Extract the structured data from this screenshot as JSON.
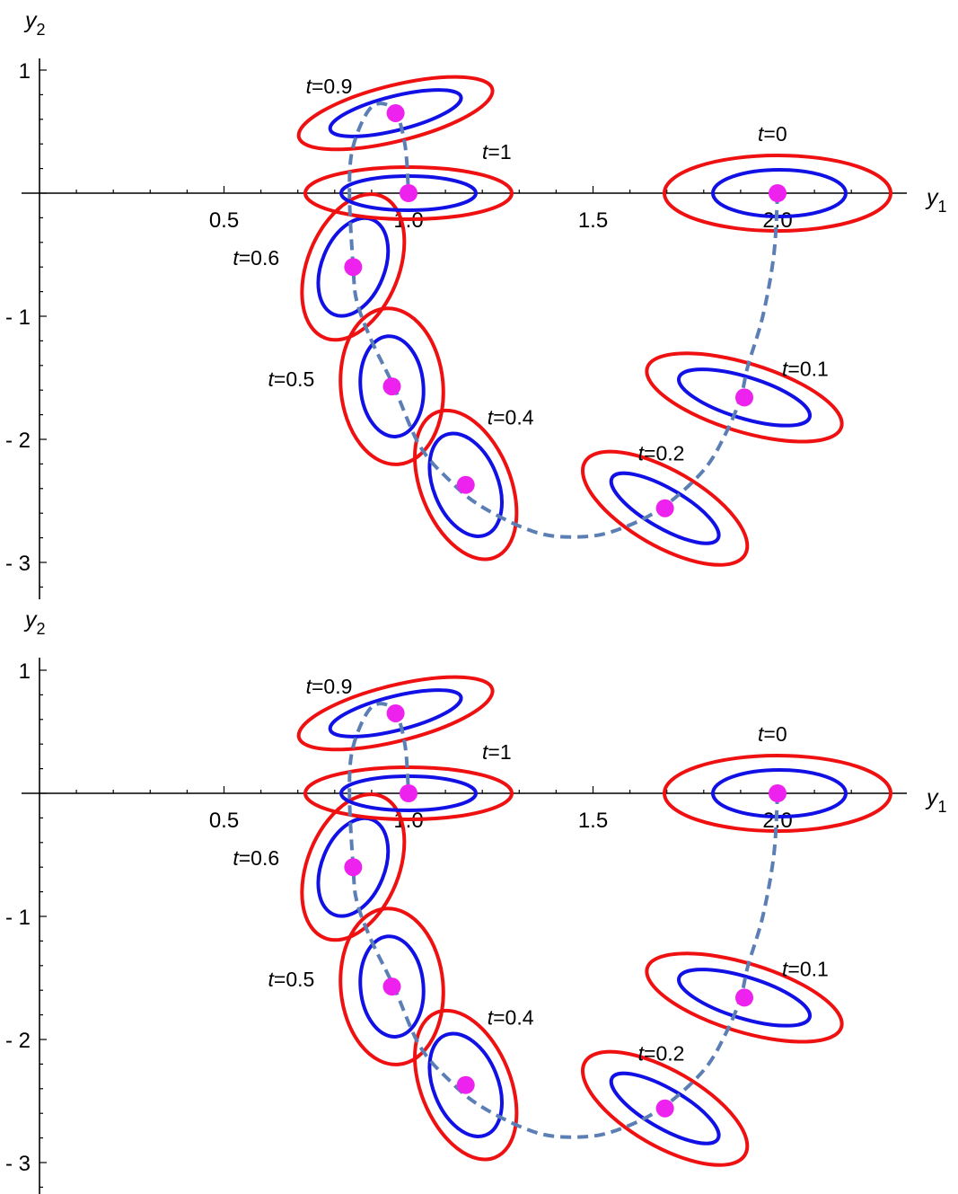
{
  "chart_data": [
    {
      "type": "scatter",
      "xlabel": "y",
      "xlabel_sub": "1",
      "ylabel": "y",
      "ylabel_sub": "2",
      "xlim": [
        0.0,
        2.3
      ],
      "ylim": [
        -3.3,
        1.1
      ],
      "x_ticks": [
        {
          "value": 0.5,
          "label": "0.5"
        },
        {
          "value": 1.0,
          "label": "1.0"
        },
        {
          "value": 1.5,
          "label": "1.5"
        },
        {
          "value": 2.0,
          "label": "2.0"
        }
      ],
      "y_ticks": [
        {
          "value": 1,
          "label": "1"
        },
        {
          "value": -1,
          "label": "- 1"
        },
        {
          "value": -2,
          "label": "- 2"
        },
        {
          "value": -3,
          "label": "- 3"
        }
      ],
      "trajectory": [
        [
          2.0,
          0.0
        ],
        [
          1.99,
          -0.5
        ],
        [
          1.96,
          -1.0
        ],
        [
          1.92,
          -1.4
        ],
        [
          1.9,
          -1.66
        ],
        [
          1.86,
          -1.95
        ],
        [
          1.8,
          -2.25
        ],
        [
          1.69,
          -2.55
        ],
        [
          1.58,
          -2.72
        ],
        [
          1.48,
          -2.79
        ],
        [
          1.35,
          -2.76
        ],
        [
          1.2,
          -2.55
        ],
        [
          1.11,
          -2.33
        ],
        [
          1.03,
          -2.05
        ],
        [
          0.96,
          -1.57
        ],
        [
          0.9,
          -1.2
        ],
        [
          0.86,
          -0.88
        ],
        [
          0.85,
          -0.6
        ],
        [
          0.84,
          0.0
        ],
        [
          0.85,
          0.38
        ],
        [
          0.9,
          0.7
        ],
        [
          0.96,
          0.68
        ],
        [
          0.99,
          0.4
        ],
        [
          1.0,
          0.0
        ]
      ],
      "points": [
        {
          "label": "t=0",
          "x": 2.0,
          "y": 0.0
        },
        {
          "label": "t=0.1",
          "x": 1.91,
          "y": -1.66
        },
        {
          "label": "t=0.2",
          "x": 1.695,
          "y": -2.56
        },
        {
          "label": "t=0.4",
          "x": 1.155,
          "y": -2.37
        },
        {
          "label": "t=0.5",
          "x": 0.955,
          "y": -1.57
        },
        {
          "label": "t=0.6",
          "x": 0.85,
          "y": -0.6
        },
        {
          "label": "t=0.9",
          "x": 0.965,
          "y": 0.65
        },
        {
          "label": "t=1",
          "x": 1.0,
          "y": 0.0
        }
      ]
    },
    {
      "type": "scatter",
      "xlabel": "y",
      "xlabel_sub": "1",
      "ylabel": "y",
      "ylabel_sub": "2",
      "xlim": [
        0.0,
        2.3
      ],
      "ylim": [
        -3.3,
        1.1
      ],
      "x_ticks": [
        {
          "value": 0.5,
          "label": "0.5"
        },
        {
          "value": 1.0,
          "label": "1.0"
        },
        {
          "value": 1.5,
          "label": "1.5"
        },
        {
          "value": 2.0,
          "label": "2.0"
        }
      ],
      "y_ticks": [
        {
          "value": 1,
          "label": "1"
        },
        {
          "value": -1,
          "label": "- 1"
        },
        {
          "value": -2,
          "label": "- 2"
        },
        {
          "value": -3,
          "label": "- 3"
        }
      ],
      "trajectory": [
        [
          2.0,
          0.0
        ],
        [
          1.99,
          -0.5
        ],
        [
          1.96,
          -1.0
        ],
        [
          1.92,
          -1.4
        ],
        [
          1.9,
          -1.66
        ],
        [
          1.86,
          -1.95
        ],
        [
          1.8,
          -2.25
        ],
        [
          1.69,
          -2.55
        ],
        [
          1.58,
          -2.72
        ],
        [
          1.48,
          -2.79
        ],
        [
          1.35,
          -2.76
        ],
        [
          1.2,
          -2.55
        ],
        [
          1.11,
          -2.33
        ],
        [
          1.03,
          -2.05
        ],
        [
          0.96,
          -1.57
        ],
        [
          0.9,
          -1.2
        ],
        [
          0.86,
          -0.88
        ],
        [
          0.85,
          -0.6
        ],
        [
          0.84,
          0.0
        ],
        [
          0.85,
          0.38
        ],
        [
          0.9,
          0.7
        ],
        [
          0.96,
          0.68
        ],
        [
          0.99,
          0.4
        ],
        [
          1.0,
          0.0
        ]
      ],
      "points": [
        {
          "label": "t=0",
          "x": 2.0,
          "y": 0.0
        },
        {
          "label": "t=0.1",
          "x": 1.91,
          "y": -1.66
        },
        {
          "label": "t=0.2",
          "x": 1.695,
          "y": -2.56
        },
        {
          "label": "t=0.4",
          "x": 1.155,
          "y": -2.37
        },
        {
          "label": "t=0.5",
          "x": 0.955,
          "y": -1.57
        },
        {
          "label": "t=0.6",
          "x": 0.85,
          "y": -0.6
        },
        {
          "label": "t=0.9",
          "x": 0.965,
          "y": 0.65
        },
        {
          "label": "t=1",
          "x": 1.0,
          "y": 0.0
        }
      ]
    }
  ],
  "colors": {
    "outer_ellipse": "#ef1111",
    "inner_ellipse": "#1111e6",
    "trajectory": "#5b7fb5",
    "point": "#ee22ee"
  }
}
